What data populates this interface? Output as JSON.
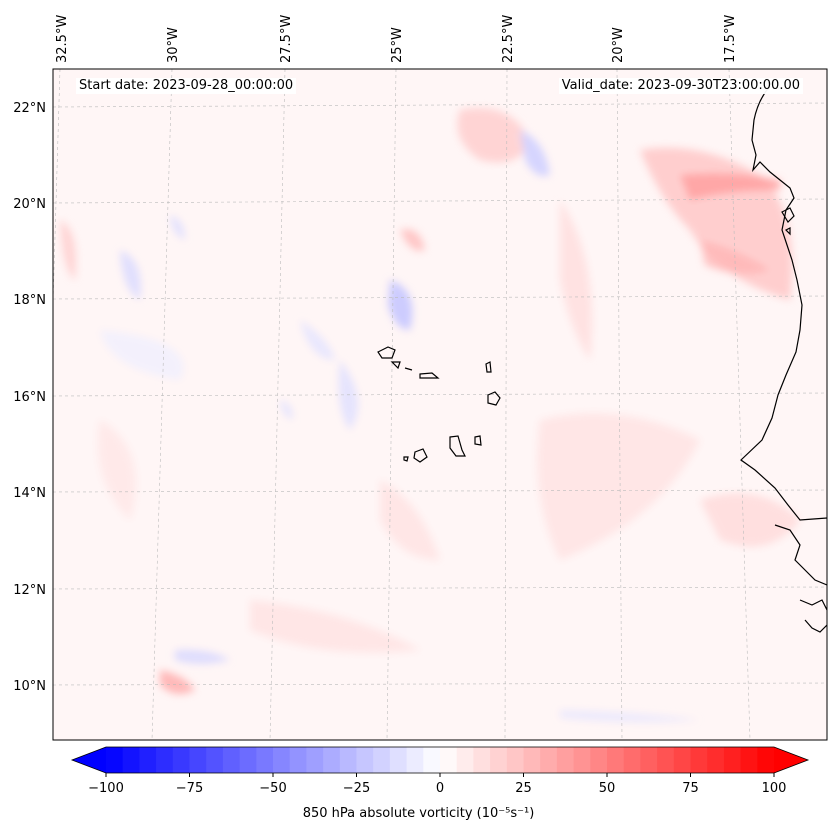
{
  "map": {
    "start_date_label": "Start date: 2023-09-28_00:00:00",
    "valid_date_label": "Valid_date: 2023-09-30T23:00:00.00",
    "lon_labels": [
      "32.5°W",
      "30°W",
      "27.5°W",
      "25°W",
      "22.5°W",
      "20°W",
      "17.5°W"
    ],
    "lat_labels": [
      "22°N",
      "20°N",
      "18°N",
      "16°N",
      "14°N",
      "12°N",
      "10°N"
    ],
    "colors": {
      "negative_max": "#0000ff",
      "positive_max": "#ff0000",
      "neutral": "#ffffff",
      "coastline": "#000000",
      "gridline": "#bbbbbb"
    }
  },
  "colorbar": {
    "label": "850 hPa absolute vorticity (10⁻⁵s⁻¹)",
    "ticks": [
      "−100",
      "−75",
      "−50",
      "−25",
      "0",
      "25",
      "50",
      "75",
      "100"
    ],
    "vmin": -100,
    "vmax": 100,
    "levels": 40
  }
}
